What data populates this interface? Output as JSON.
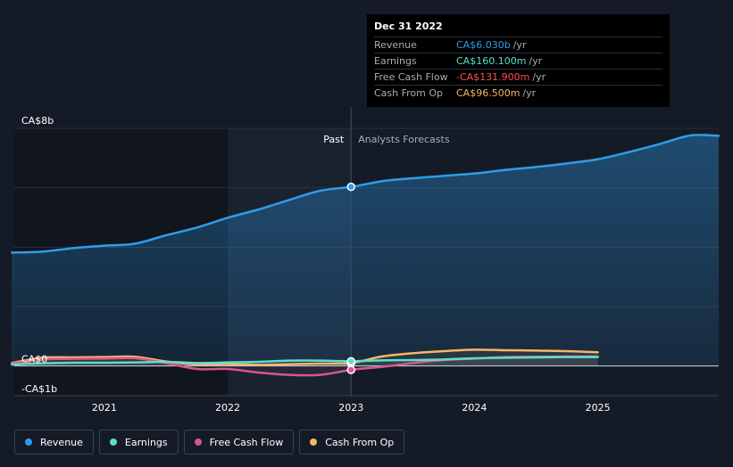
{
  "tooltip": {
    "date": "Dec 31 2022",
    "rows": [
      {
        "label": "Revenue",
        "value": "CA$6.030b",
        "unit": "/yr",
        "color": "#2f9ceb"
      },
      {
        "label": "Earnings",
        "value": "CA$160.100m",
        "unit": "/yr",
        "color": "#5ce0c6"
      },
      {
        "label": "Free Cash Flow",
        "value": "-CA$131.900m",
        "unit": "/yr",
        "color": "#ff4d4d"
      },
      {
        "label": "Cash From Op",
        "value": "CA$96.500m",
        "unit": "/yr",
        "color": "#f5b66a"
      }
    ]
  },
  "legend": [
    {
      "label": "Revenue",
      "color": "#2f9ceb"
    },
    {
      "label": "Earnings",
      "color": "#5ce0c6"
    },
    {
      "label": "Free Cash Flow",
      "color": "#d9568d"
    },
    {
      "label": "Cash From Op",
      "color": "#f5b66a"
    }
  ],
  "chart_data": {
    "type": "line",
    "title": "",
    "xlabel": "",
    "ylabel": "",
    "ylim": [
      -1,
      8
    ],
    "xlim": [
      2020.27,
      2025.98
    ],
    "y_tick_labels": [
      {
        "value": 8,
        "label": "CA$8b"
      },
      {
        "value": 0,
        "label": "CA$0"
      },
      {
        "value": -1,
        "label": "-CA$1b"
      }
    ],
    "x_tick_labels": [
      "2021",
      "2022",
      "2023",
      "2024",
      "2025"
    ],
    "x_ticks": [
      2021,
      2022,
      2023,
      2024,
      2025
    ],
    "gridlines_y": [
      8,
      6,
      4,
      2,
      0
    ],
    "divider_x": 2023.0,
    "past_label": "Past",
    "forecast_label": "Analysts Forecasts",
    "units": "CA$ billions",
    "series": [
      {
        "name": "Revenue",
        "color": "#2f9ceb",
        "x": [
          2020.25,
          2020.5,
          2020.75,
          2021.0,
          2021.25,
          2021.5,
          2021.75,
          2022.0,
          2022.25,
          2022.5,
          2022.75,
          2023.0,
          2023.25,
          2023.5,
          2023.75,
          2024.0,
          2024.25,
          2024.5,
          2024.75,
          2025.0,
          2025.25,
          2025.5,
          2025.75,
          2025.98
        ],
        "values": [
          3.82,
          3.85,
          3.97,
          4.05,
          4.12,
          4.4,
          4.66,
          4.99,
          5.27,
          5.59,
          5.9,
          6.03,
          6.22,
          6.32,
          6.4,
          6.48,
          6.6,
          6.7,
          6.82,
          6.96,
          7.2,
          7.47,
          7.76,
          7.75
        ]
      },
      {
        "name": "Earnings",
        "color": "#5ce0c6",
        "x": [
          2020.25,
          2020.5,
          2020.75,
          2021.0,
          2021.25,
          2021.5,
          2021.75,
          2022.0,
          2022.25,
          2022.5,
          2022.75,
          2023.0,
          2023.25,
          2023.5,
          2023.75,
          2024.0,
          2024.25,
          2024.5,
          2024.75,
          2025.0
        ],
        "values": [
          0.05,
          0.09,
          0.11,
          0.11,
          0.12,
          0.14,
          0.1,
          0.12,
          0.14,
          0.18,
          0.18,
          0.16,
          0.19,
          0.2,
          0.22,
          0.26,
          0.28,
          0.29,
          0.3,
          0.3
        ]
      },
      {
        "name": "Free Cash Flow",
        "color": "#d9568d",
        "x": [
          2020.25,
          2020.5,
          2020.75,
          2021.0,
          2021.25,
          2021.5,
          2021.75,
          2022.0,
          2022.25,
          2022.5,
          2022.75,
          2023.0,
          2023.25,
          2023.5,
          2023.75,
          2024.0,
          2024.25,
          2024.5,
          2024.75,
          2025.0
        ],
        "values": [
          0.08,
          0.22,
          0.24,
          0.25,
          0.26,
          0.1,
          -0.1,
          -0.1,
          -0.22,
          -0.3,
          -0.3,
          -0.13,
          -0.03,
          0.1,
          0.2,
          0.25,
          0.3,
          0.31,
          0.32,
          0.32
        ]
      },
      {
        "name": "Cash From Op",
        "color": "#f5b66a",
        "x": [
          2020.25,
          2020.5,
          2020.75,
          2021.0,
          2021.25,
          2021.5,
          2021.75,
          2022.0,
          2022.25,
          2022.5,
          2022.75,
          2023.0,
          2023.25,
          2023.5,
          2023.75,
          2024.0,
          2024.25,
          2024.5,
          2024.75,
          2025.0
        ],
        "values": [
          0.1,
          0.28,
          0.29,
          0.3,
          0.31,
          0.15,
          0.05,
          0.06,
          0.04,
          0.06,
          0.08,
          0.1,
          0.32,
          0.43,
          0.5,
          0.55,
          0.53,
          0.52,
          0.5,
          0.46
        ]
      }
    ],
    "highlight_x": 2023.0
  }
}
